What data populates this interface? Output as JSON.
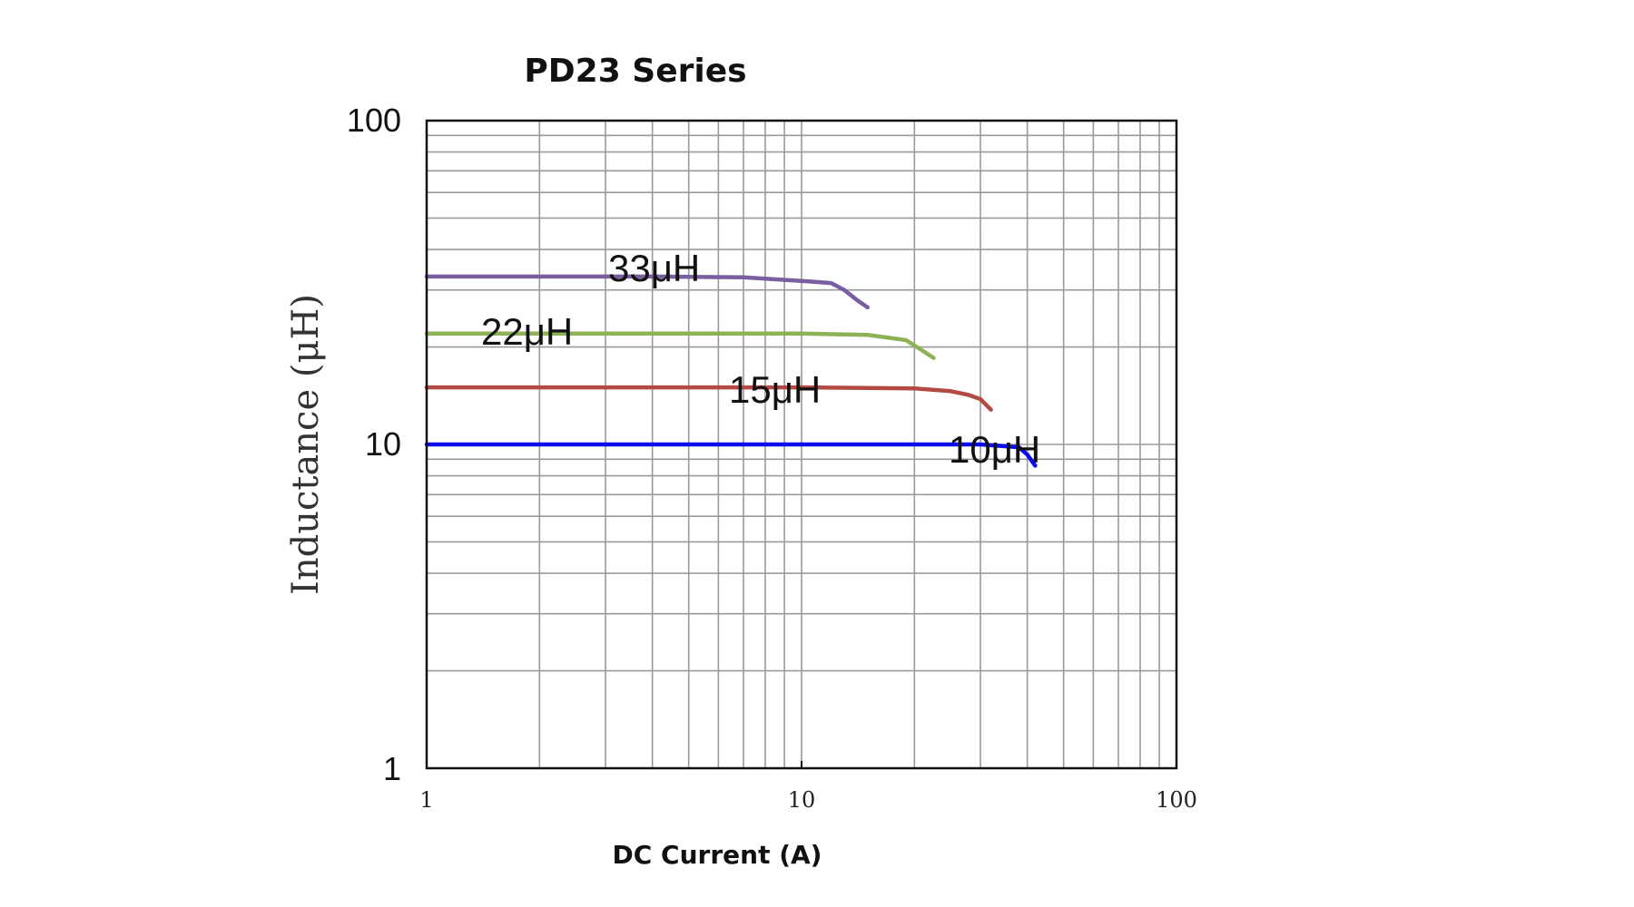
{
  "chart_data": {
    "type": "line",
    "title": "PD23 Series",
    "xlabel": "DC Current (A)",
    "ylabel": "Inductance (μH)",
    "xscale": "log",
    "yscale": "log",
    "xlim": [
      1,
      100
    ],
    "ylim": [
      1,
      100
    ],
    "x_ticks": [
      "1",
      "10",
      "100"
    ],
    "y_ticks": [
      "1",
      "10",
      "100"
    ],
    "grid": true,
    "series": [
      {
        "name": "33μH",
        "color": "#7a5fa0",
        "x": [
          1,
          2,
          4,
          7,
          10,
          12,
          13,
          14,
          15
        ],
        "y": [
          33,
          33,
          33,
          32.8,
          32,
          31.5,
          30,
          28,
          26.5
        ]
      },
      {
        "name": "22μH",
        "color": "#8db255",
        "x": [
          1,
          3,
          6,
          10,
          15,
          19,
          21,
          22.5
        ],
        "y": [
          22,
          22,
          22,
          22,
          21.8,
          21,
          19.5,
          18.5
        ]
      },
      {
        "name": "15μH",
        "color": "#b54a44",
        "x": [
          1,
          5,
          10,
          20,
          25,
          28,
          30,
          32
        ],
        "y": [
          15,
          15,
          15,
          14.9,
          14.6,
          14.2,
          13.8,
          12.8
        ]
      },
      {
        "name": "10μH",
        "color": "#0b0bf0",
        "x": [
          1,
          10,
          30,
          38,
          40,
          42
        ],
        "y": [
          10,
          10,
          10,
          9.8,
          9.3,
          8.6
        ]
      }
    ]
  }
}
